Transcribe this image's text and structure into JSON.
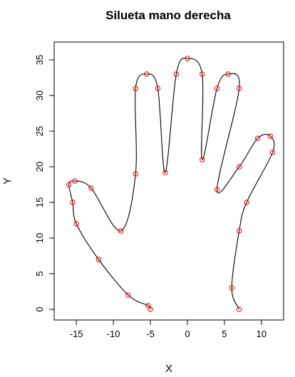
{
  "chart_data": {
    "type": "line",
    "title": "Silueta mano derecha",
    "xlabel": "X",
    "ylabel": "Y",
    "xlim": [
      -18,
      13
    ],
    "ylim": [
      -1.5,
      37.5
    ],
    "xticks": [
      -15,
      -10,
      -5,
      0,
      5,
      10
    ],
    "yticks": [
      0,
      5,
      10,
      15,
      20,
      25,
      30,
      35
    ],
    "grid": false,
    "point_color": "#ff0000",
    "line_color": "#000000",
    "x": [
      -5,
      -5.3,
      -8,
      -12,
      -15,
      -15.5,
      -16,
      -15.2,
      -13,
      -9,
      -7,
      -7,
      -5.5,
      -4,
      -3,
      -1.5,
      0,
      2,
      2,
      4,
      5.5,
      7,
      4,
      7,
      9.5,
      11.2,
      11.5,
      8,
      7,
      6,
      7
    ],
    "y": [
      0,
      0.5,
      2,
      7,
      12,
      15,
      17.5,
      18,
      17,
      11,
      19,
      31,
      33,
      31,
      19.2,
      33,
      35.2,
      33,
      21,
      31,
      33,
      31,
      16.8,
      20,
      24,
      24.3,
      22,
      15,
      11,
      3,
      0
    ]
  }
}
